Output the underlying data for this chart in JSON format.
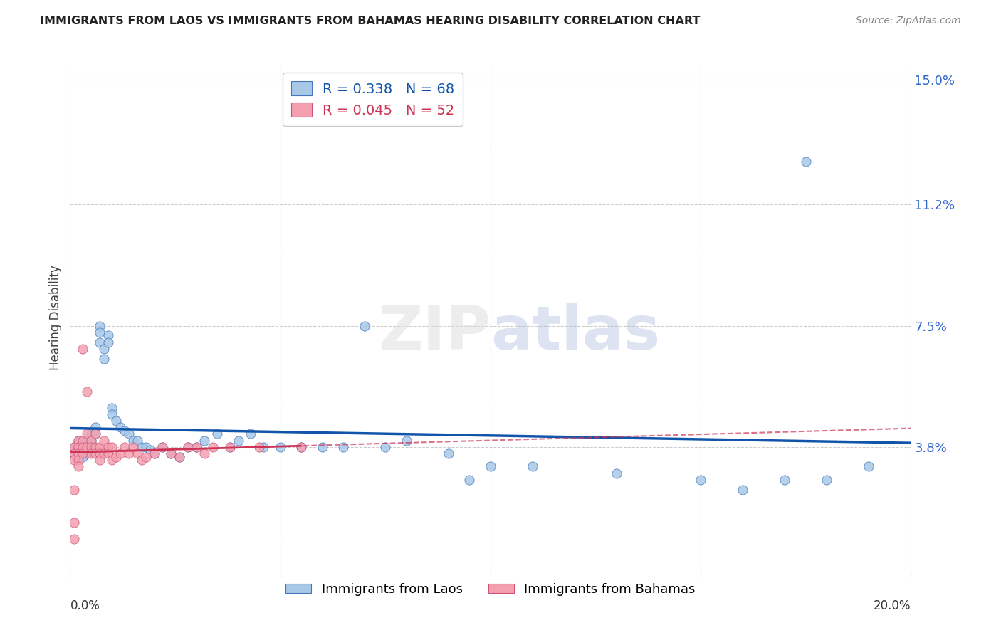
{
  "title": "IMMIGRANTS FROM LAOS VS IMMIGRANTS FROM BAHAMAS HEARING DISABILITY CORRELATION CHART",
  "source": "Source: ZipAtlas.com",
  "ylabel": "Hearing Disability",
  "xlim": [
    0.0,
    0.2
  ],
  "ylim": [
    0.0,
    0.155
  ],
  "ytick_labels": [
    "15.0%",
    "11.2%",
    "7.5%",
    "3.8%"
  ],
  "ytick_values": [
    0.15,
    0.112,
    0.075,
    0.038
  ],
  "grid_color": "#cccccc",
  "background_color": "#ffffff",
  "laos_color": "#a8c8e8",
  "laos_edge": "#4477bb",
  "laos_line": "#1155aa",
  "bahamas_color": "#f4a0b0",
  "bahamas_edge": "#cc5577",
  "bahamas_line": "#cc3355",
  "laos_R": 0.338,
  "laos_N": 68,
  "bahamas_R": 0.045,
  "bahamas_N": 52,
  "laos_x": [
    0.001,
    0.001,
    0.001,
    0.002,
    0.002,
    0.002,
    0.002,
    0.002,
    0.003,
    0.003,
    0.003,
    0.003,
    0.004,
    0.004,
    0.004,
    0.005,
    0.005,
    0.005,
    0.006,
    0.006,
    0.007,
    0.007,
    0.007,
    0.008,
    0.008,
    0.009,
    0.009,
    0.01,
    0.01,
    0.011,
    0.012,
    0.013,
    0.014,
    0.015,
    0.016,
    0.017,
    0.018,
    0.019,
    0.02,
    0.022,
    0.024,
    0.026,
    0.028,
    0.03,
    0.032,
    0.035,
    0.038,
    0.04,
    0.043,
    0.046,
    0.05,
    0.055,
    0.06,
    0.065,
    0.07,
    0.075,
    0.08,
    0.09,
    0.095,
    0.1,
    0.11,
    0.13,
    0.15,
    0.16,
    0.17,
    0.18,
    0.19,
    0.175
  ],
  "laos_y": [
    0.038,
    0.037,
    0.036,
    0.04,
    0.038,
    0.037,
    0.036,
    0.035,
    0.039,
    0.038,
    0.036,
    0.035,
    0.04,
    0.038,
    0.036,
    0.042,
    0.04,
    0.038,
    0.044,
    0.042,
    0.075,
    0.073,
    0.07,
    0.068,
    0.065,
    0.072,
    0.07,
    0.05,
    0.048,
    0.046,
    0.044,
    0.043,
    0.042,
    0.04,
    0.04,
    0.038,
    0.038,
    0.037,
    0.036,
    0.038,
    0.036,
    0.035,
    0.038,
    0.038,
    0.04,
    0.042,
    0.038,
    0.04,
    0.042,
    0.038,
    0.038,
    0.038,
    0.038,
    0.038,
    0.075,
    0.038,
    0.04,
    0.036,
    0.028,
    0.032,
    0.032,
    0.03,
    0.028,
    0.025,
    0.028,
    0.028,
    0.032,
    0.125
  ],
  "bahamas_x": [
    0.001,
    0.001,
    0.001,
    0.001,
    0.001,
    0.001,
    0.002,
    0.002,
    0.002,
    0.002,
    0.002,
    0.003,
    0.003,
    0.003,
    0.003,
    0.004,
    0.004,
    0.004,
    0.005,
    0.005,
    0.005,
    0.006,
    0.006,
    0.006,
    0.007,
    0.007,
    0.007,
    0.008,
    0.008,
    0.009,
    0.009,
    0.01,
    0.01,
    0.011,
    0.012,
    0.013,
    0.014,
    0.015,
    0.016,
    0.017,
    0.018,
    0.02,
    0.022,
    0.024,
    0.026,
    0.028,
    0.03,
    0.032,
    0.034,
    0.038,
    0.045,
    0.055
  ],
  "bahamas_y": [
    0.038,
    0.036,
    0.034,
    0.025,
    0.015,
    0.01,
    0.04,
    0.038,
    0.036,
    0.034,
    0.032,
    0.068,
    0.04,
    0.038,
    0.036,
    0.055,
    0.042,
    0.038,
    0.04,
    0.038,
    0.036,
    0.042,
    0.038,
    0.036,
    0.038,
    0.036,
    0.034,
    0.04,
    0.036,
    0.038,
    0.036,
    0.038,
    0.034,
    0.035,
    0.036,
    0.038,
    0.036,
    0.038,
    0.036,
    0.034,
    0.035,
    0.036,
    0.038,
    0.036,
    0.035,
    0.038,
    0.038,
    0.036,
    0.038,
    0.038,
    0.038,
    0.038
  ]
}
